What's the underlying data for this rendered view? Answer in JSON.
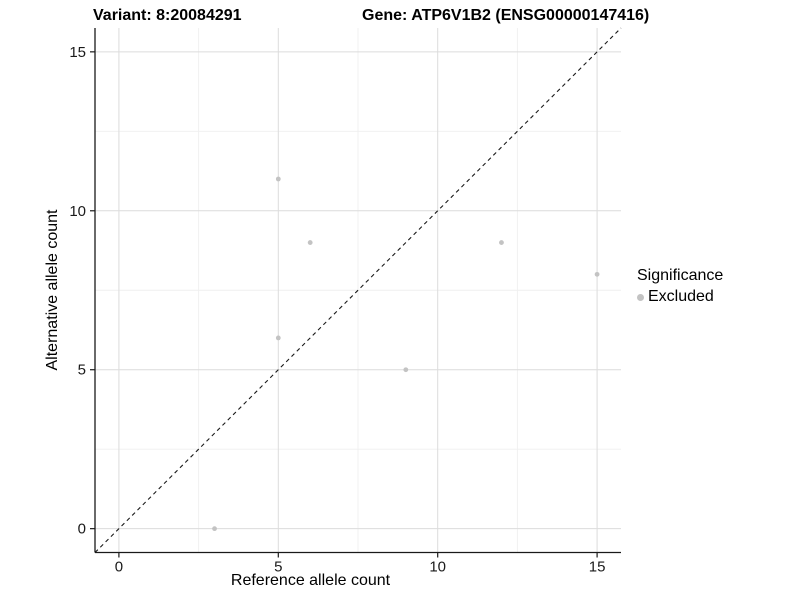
{
  "header": {
    "left_title": "Variant: 8:20084291",
    "right_title": "Gene: ATP6V1B2 (ENSG00000147416)"
  },
  "legend": {
    "title": "Significance",
    "items": [
      {
        "label": "Excluded",
        "color": "#c3c3c3"
      }
    ]
  },
  "colors": {
    "axis_line": "#1a1a1a",
    "tick_text": "#1a1a1a",
    "grid_major": "#dcdcdc",
    "grid_minor": "#efefef",
    "identity_line": "#1a1a1a",
    "point_fill": "#c3c3c3",
    "background": "#ffffff"
  },
  "chart_data": {
    "type": "scatter",
    "title": "Variant: 8:20084291   Gene: ATP6V1B2 (ENSG00000147416)",
    "xlabel": "Reference allele count",
    "ylabel": "Alternative allele count",
    "xlim": [
      -0.75,
      15.75
    ],
    "ylim": [
      -0.75,
      15.75
    ],
    "x_ticks": [
      0,
      5,
      10,
      15
    ],
    "y_ticks": [
      0,
      5,
      10,
      15
    ],
    "x_minor_ticks": [
      2.5,
      7.5,
      12.5
    ],
    "y_minor_ticks": [
      2.5,
      7.5,
      12.5
    ],
    "grid": true,
    "legend_position": "right",
    "identity_line": {
      "style": "dashed",
      "from": [
        -0.75,
        -0.75
      ],
      "to": [
        15.75,
        15.75
      ]
    },
    "series": [
      {
        "name": "Excluded",
        "points": [
          {
            "x": 3,
            "y": 0
          },
          {
            "x": 5,
            "y": 6
          },
          {
            "x": 5,
            "y": 11
          },
          {
            "x": 6,
            "y": 9
          },
          {
            "x": 9,
            "y": 5
          },
          {
            "x": 12,
            "y": 9
          },
          {
            "x": 15,
            "y": 8
          }
        ]
      }
    ]
  }
}
